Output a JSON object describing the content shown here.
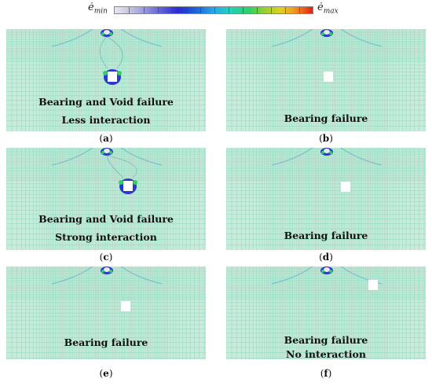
{
  "legend": {
    "min_base": "ė",
    "min_sub": "min",
    "max_base": "ė",
    "max_sub": "max",
    "colors": [
      "#e8e8ee",
      "#6a6ad8",
      "#2a2ad0",
      "#2aa8e8",
      "#22d0c0",
      "#30d060",
      "#9ad030",
      "#e0d020",
      "#f0a020",
      "#e02010"
    ]
  },
  "panels": [
    {
      "id": "a",
      "caption": "a",
      "lines": [
        "Bearing and Void failure",
        "Less interaction"
      ]
    },
    {
      "id": "b",
      "caption": "b",
      "lines": [
        "Bearing failure"
      ]
    },
    {
      "id": "c",
      "caption": "c",
      "lines": [
        "Bearing and Void failure",
        "Strong interaction"
      ]
    },
    {
      "id": "d",
      "caption": "d",
      "lines": [
        "Bearing failure"
      ]
    },
    {
      "id": "e",
      "caption": "e",
      "lines": [
        "Bearing failure"
      ]
    },
    {
      "id": "f",
      "caption": "f",
      "lines": [
        "Bearing failure",
        "No interaction"
      ]
    }
  ],
  "mesh_color": "#c8ecdc",
  "grid_color": "#8fd6bc"
}
